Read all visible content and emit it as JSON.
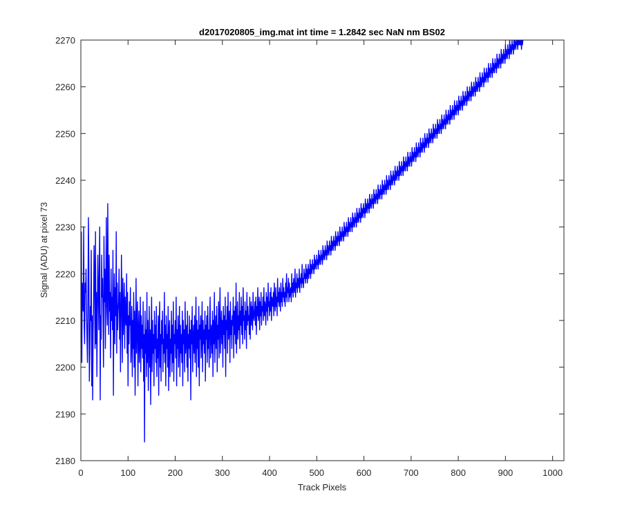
{
  "chart_data": {
    "type": "line",
    "title": "d2017020805_img.mat int time = 1.2842 sec  NaN nm BS02",
    "xlabel": "Track Pixels",
    "ylabel": "Signal (ADU) at pixel 73",
    "xlim": [
      0,
      1024
    ],
    "ylim": [
      2180,
      2270
    ],
    "xticks": [
      "0",
      "100",
      "200",
      "300",
      "400",
      "500",
      "600",
      "700",
      "800",
      "900",
      "1000"
    ],
    "yticks": [
      "2180",
      "2190",
      "2200",
      "2210",
      "2220",
      "2230",
      "2240",
      "2250",
      "2260",
      "2270"
    ],
    "grid": false,
    "legend": "none",
    "colors": {
      "series": "#0000ff",
      "axes": "#262626",
      "background": "#ffffff"
    },
    "series": [
      {
        "x_start": 1,
        "x_step": 1,
        "n_points": 1024,
        "values": [
          2229,
          2201,
          2218,
          2215,
          2212,
          2230,
          2209,
          2205,
          2218,
          2216,
          2221,
          2212,
          2206,
          2201,
          2214,
          2232,
          2222,
          2197,
          2203,
          2213,
          2210,
          2225,
          2196,
          2211,
          2193,
          2208,
          2214,
          2226,
          2219,
          2204,
          2229,
          2205,
          2216,
          2198,
          2212,
          2224,
          2217,
          2208,
          2221,
          2230,
          2193,
          2211,
          2206,
          2224,
          2215,
          2219,
          2210,
          2200,
          2228,
          2214,
          2221,
          2204,
          2217,
          2232,
          2213,
          2209,
          2235,
          2218,
          2207,
          2224,
          2212,
          2216,
          2202,
          2221,
          2210,
          2215,
          2208,
          2225,
          2194,
          2213,
          2220,
          2205,
          2217,
          2211,
          2229,
          2203,
          2218,
          2208,
          2212,
          2214,
          2221,
          2206,
          2216,
          2199,
          2210,
          2224,
          2213,
          2201,
          2219,
          2207,
          2212,
          2218,
          2204,
          2215,
          2210,
          2209,
          2220,
          2203,
          2216,
          2196,
          2211,
          2205,
          2214,
          2209,
          2217,
          2201,
          2206,
          2213,
          2198,
          2210,
          2204,
          2216,
          2200,
          2212,
          2194,
          2207,
          2219,
          2203,
          2210,
          2214,
          2196,
          2208,
          2212,
          2201,
          2206,
          2215,
          2199,
          2211,
          2204,
          2209,
          2202,
          2214,
          2197,
          2207,
          2184,
          2212,
          2203,
          2208,
          2198,
          2216,
          2201,
          2210,
          2195,
          2205,
          2213,
          2200,
          2208,
          2192,
          2206,
          2215,
          2199,
          2210,
          2203,
          2207,
          2196,
          2212,
          2204,
          2209,
          2201,
          2213,
          2198,
          2206,
          2202,
          2211,
          2194,
          2208,
          2214,
          2200,
          2207,
          2197,
          2210,
          2205,
          2212,
          2199,
          2206,
          2203,
          2216,
          2201,
          2209,
          2196,
          2211,
          2204,
          2207,
          2200,
          2213,
          2195,
          2208,
          2210,
          2198,
          2206,
          2203,
          2212,
          2199,
          2209,
          2201,
          2214,
          2197,
          2207,
          2205,
          2210,
          2202,
          2215,
          2196,
          2208,
          2204,
          2211,
          2200,
          2206,
          2213,
          2198,
          2209,
          2203,
          2207,
          2201,
          2212,
          2196,
          2210,
          2205,
          2208,
          2199,
          2214,
          2203,
          2206,
          2209,
          2200,
          2212,
          2197,
          2207,
          2204,
          2211,
          2202,
          2208,
          2193,
          2210,
          2205,
          2213,
          2199,
          2206,
          2209,
          2203,
          2211,
          2201,
          2207,
          2215,
          2198,
          2210,
          2204,
          2208,
          2200,
          2213,
          2196,
          2209,
          2206,
          2211,
          2202,
          2207,
          2214,
          2199,
          2210,
          2205,
          2208,
          2203,
          2212,
          2197,
          2209,
          2206,
          2211,
          2201,
          2213,
          2204,
          2208,
          2200,
          2210,
          2215,
          2202,
          2207,
          2209,
          2203,
          2212,
          2198,
          2210,
          2205,
          2216,
          2201,
          2208,
          2211,
          2204,
          2213,
          2199,
          2209,
          2206,
          2214,
          2202,
          2210,
          2217,
          2203,
          2208,
          2212,
          2205,
          2210,
          2200,
          2213,
          2207,
          2211,
          2204,
          2215,
          2198,
          2210,
          2208,
          2213,
          2203,
          2216,
          2206,
          2209,
          2212,
          2201,
          2214,
          2207,
          2210,
          2204,
          2211,
          2209,
          2215,
          2202,
          2212,
          2207,
          2213,
          2205,
          2218,
          2203,
          2210,
          2214,
          2206,
          2211,
          2208,
          2216,
          2204,
          2212,
          2209,
          2215,
          2207,
          2213,
          2205,
          2217,
          2210,
          2211,
          2206,
          2214,
          2208,
          2212,
          2204,
          2216,
          2209,
          2213,
          2210,
          2211,
          2207,
          2215,
          2206,
          2212,
          2214,
          2209,
          2213,
          2208,
          2216,
          2211,
          2210,
          2212,
          2214,
          2209,
          2215,
          2207,
          2213,
          2211,
          2217,
          2210,
          2212,
          2215,
          2208,
          2214,
          2211,
          2216,
          2209,
          2213,
          2212,
          2215,
          2210,
          2217,
          2211,
          2214,
          2213,
          2209,
          2216,
          2212,
          2215,
          2210,
          2218,
          2213,
          2214,
          2211,
          2216,
          2212,
          2217,
          2210,
          2215,
          2214,
          2213,
          2216,
          2211,
          2218,
          2214,
          2212,
          2217,
          2213,
          2215,
          2211,
          2219,
          2214,
          2216,
          2213,
          2217,
          2215,
          2212,
          2218,
          2214,
          2216,
          2213,
          2219,
          2215,
          2217,
          2214,
          2216,
          2213,
          2218,
          2215,
          2220,
          2214,
          2217,
          2216,
          2219,
          2214,
          2218,
          2215,
          2216,
          2217,
          2214,
          2220,
          2216,
          2218,
          2215,
          2219,
          2217,
          2216,
          2221,
          2215,
          2218,
          2217,
          2220,
          2216,
          2219,
          2218,
          2217,
          2221,
          2216,
          2219,
          2218,
          2220,
          2217,
          2222,
          2218,
          2219,
          2217,
          2221,
          2219,
          2220,
          2218,
          2222,
          2219,
          2221,
          2218,
          2220,
          2222,
          2219,
          2221,
          2220,
          2223,
          2219,
          2222,
          2221,
          2220,
          2223,
          2221,
          2222,
          2220,
          2224,
          2221,
          2223,
          2222,
          2221,
          2224,
          2222,
          2223,
          2221,
          2225,
          2222,
          2224,
          2223,
          2222,
          2225,
          2223,
          2224,
          2222,
          2226,
          2223,
          2225,
          2224,
          2223,
          2226,
          2224,
          2225,
          2223,
          2227,
          2224,
          2226,
          2225,
          2224,
          2227,
          2225,
          2226,
          2224,
          2228,
          2225,
          2227,
          2226,
          2225,
          2228,
          2226,
          2227,
          2225,
          2229,
          2226,
          2228,
          2227,
          2226,
          2229,
          2227,
          2228,
          2226,
          2230,
          2227,
          2229,
          2228,
          2227,
          2230,
          2228,
          2229,
          2227,
          2231,
          2228,
          2230,
          2229,
          2228,
          2231,
          2229,
          2230,
          2228,
          2232,
          2229,
          2231,
          2230,
          2229,
          2232,
          2230,
          2231,
          2229,
          2233,
          2230,
          2232,
          2231,
          2230,
          2233,
          2231,
          2232,
          2230,
          2234,
          2231,
          2233,
          2232,
          2231,
          2234,
          2232,
          2233,
          2231,
          2235,
          2232,
          2234,
          2233,
          2232,
          2235,
          2233,
          2234,
          2232,
          2236,
          2233,
          2235,
          2234,
          2233,
          2236,
          2234,
          2235,
          2233,
          2237,
          2234,
          2236,
          2235,
          2234,
          2237,
          2235,
          2236,
          2234,
          2238,
          2235,
          2237,
          2236,
          2235,
          2238,
          2236,
          2237,
          2235,
          2239,
          2236,
          2238,
          2237,
          2236,
          2239,
          2237,
          2238,
          2236,
          2240,
          2237,
          2239,
          2238,
          2237,
          2240,
          2238,
          2239,
          2237,
          2241,
          2238,
          2240,
          2239,
          2238,
          2241,
          2239,
          2240,
          2238,
          2242,
          2239,
          2241,
          2240,
          2239,
          2242,
          2240,
          2241,
          2239,
          2243,
          2240,
          2242,
          2241,
          2240,
          2243,
          2241,
          2242,
          2240,
          2244,
          2241,
          2243,
          2242,
          2241,
          2244,
          2242,
          2243,
          2241,
          2245,
          2242,
          2244,
          2243,
          2242,
          2245,
          2243,
          2244,
          2242,
          2246,
          2243,
          2245,
          2244,
          2243,
          2246,
          2244,
          2245,
          2243,
          2247,
          2244,
          2246,
          2245,
          2244,
          2247,
          2245,
          2246,
          2244,
          2248,
          2245,
          2247,
          2246,
          2245,
          2248,
          2246,
          2247,
          2245,
          2249,
          2246,
          2248,
          2247,
          2246,
          2249,
          2247,
          2248,
          2246,
          2250,
          2247,
          2249,
          2248,
          2247,
          2250,
          2248,
          2249,
          2247,
          2251,
          2248,
          2250,
          2249,
          2248,
          2251,
          2249,
          2250,
          2248,
          2252,
          2249,
          2251,
          2250,
          2249,
          2252,
          2250,
          2251,
          2249,
          2253,
          2250,
          2252,
          2251,
          2250,
          2253,
          2251,
          2252,
          2250,
          2254,
          2251,
          2253,
          2252,
          2251,
          2254,
          2252,
          2253,
          2251,
          2255,
          2252,
          2254,
          2253,
          2252,
          2255,
          2253,
          2254,
          2252,
          2256,
          2253,
          2255,
          2254,
          2253,
          2256,
          2254,
          2255,
          2253,
          2257,
          2254,
          2256,
          2255,
          2254,
          2257,
          2255,
          2256,
          2254,
          2258,
          2255,
          2257,
          2256,
          2255,
          2258,
          2256,
          2257,
          2255,
          2259,
          2256,
          2258,
          2257,
          2256,
          2259,
          2257,
          2258,
          2256,
          2260,
          2257,
          2259,
          2258,
          2257,
          2260,
          2258,
          2259,
          2257,
          2261,
          2258,
          2260,
          2259,
          2258,
          2261,
          2259,
          2260,
          2258,
          2262,
          2259,
          2261,
          2260,
          2259,
          2262,
          2260,
          2261,
          2259,
          2263,
          2260,
          2262,
          2261,
          2260,
          2263,
          2261,
          2262,
          2260,
          2264,
          2261,
          2263,
          2262,
          2261,
          2264,
          2262,
          2263,
          2261,
          2265,
          2262,
          2264,
          2263,
          2262,
          2265,
          2263,
          2264,
          2262,
          2266,
          2263,
          2265,
          2264,
          2263,
          2266,
          2264,
          2265,
          2263,
          2267,
          2264,
          2266,
          2265,
          2264,
          2267,
          2265,
          2266,
          2264,
          2268,
          2265,
          2267,
          2266,
          2265,
          2268,
          2266,
          2267,
          2265,
          2269,
          2266,
          2268,
          2267,
          2266,
          2269,
          2267,
          2268,
          2266,
          2270,
          2267,
          2269,
          2268,
          2267,
          2270,
          2268,
          2269,
          2267,
          2270,
          2268,
          2270,
          2269,
          2268,
          2270,
          2269,
          2270,
          2268,
          2270,
          2269,
          2270,
          2269,
          2270,
          2269,
          2270,
          2268,
          2270,
          2269,
          2270
        ]
      }
    ]
  }
}
